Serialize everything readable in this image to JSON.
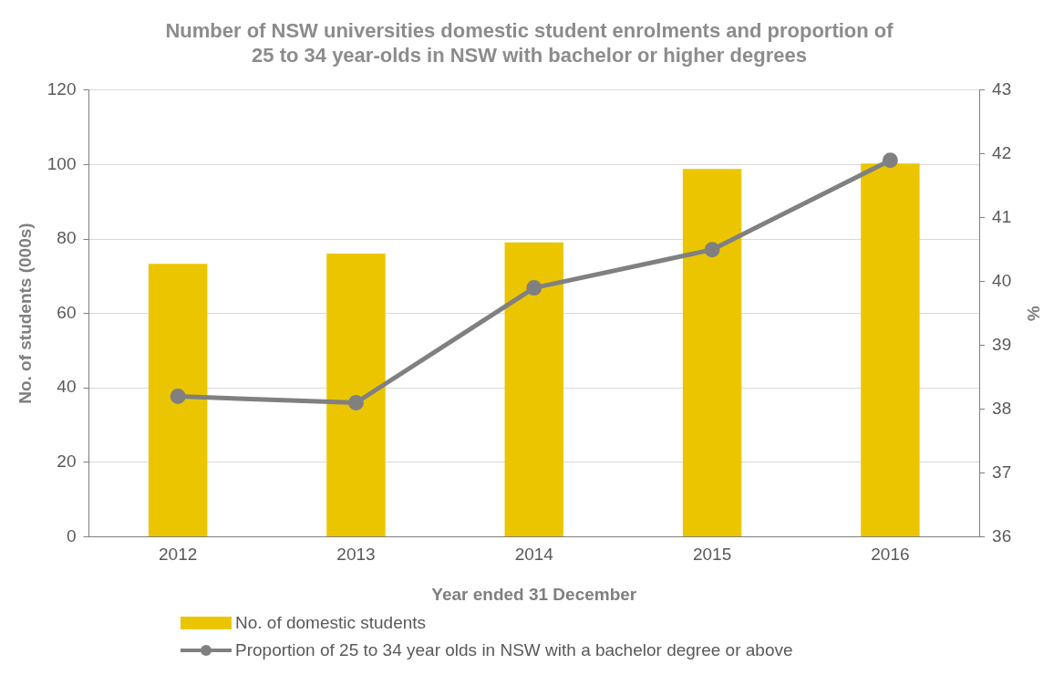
{
  "chart_data": {
    "type": "bar",
    "title": "Number of NSW universities domestic student enrolments and proportion of 25 to 34 year-olds in NSW with bachelor or higher degrees",
    "xlabel": "Year ended 31 December",
    "ylabel": "No. of students (000s)",
    "y2label": "%",
    "categories": [
      "2012",
      "2013",
      "2014",
      "2015",
      "2016"
    ],
    "series": [
      {
        "name": "No. of domestic students",
        "color": "#ebc600",
        "values": [
          73.3,
          76.1,
          79.1,
          98.8,
          100.3
        ]
      },
      {
        "name": "Proportion of 25 to 34 year olds in NSW with a bachelor degree or above",
        "type": "line",
        "axis": "y2",
        "color": "#808080",
        "values": [
          38.2,
          38.1,
          39.9,
          40.5,
          41.9
        ]
      }
    ],
    "ylim": [
      0,
      120
    ],
    "yticks": [
      0,
      20,
      40,
      60,
      80,
      100,
      120
    ],
    "y2lim": [
      36,
      43
    ],
    "y2ticks": [
      36,
      37,
      38,
      39,
      40,
      41,
      42,
      43
    ],
    "grid": "y",
    "legend": "bottom",
    "marker": "circle",
    "line_style": "solid"
  }
}
